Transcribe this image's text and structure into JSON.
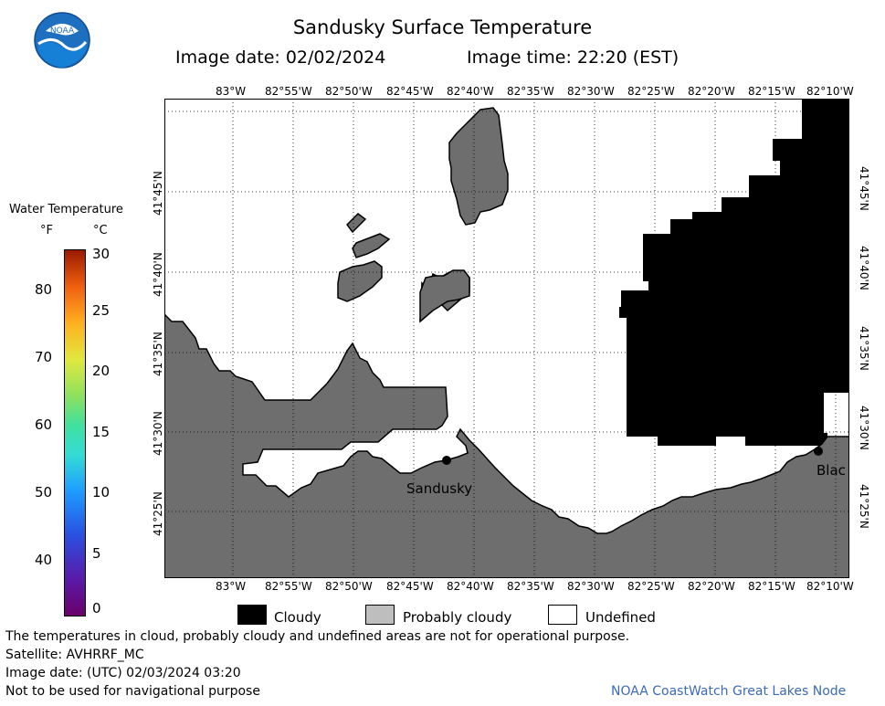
{
  "title": "Sandusky Surface Temperature",
  "image_date_label": "Image date: 02/02/2024",
  "image_time_label": "Image time: 22:20 (EST)",
  "colors": {
    "land": "#6e6e6e",
    "cloud": "#000000",
    "probably_cloud": "#bebebe",
    "water_undefined": "#ffffff"
  },
  "longitude_labels": [
    "83°W",
    "82°55'W",
    "82°50'W",
    "82°45'W",
    "82°40'W",
    "82°35'W",
    "82°30'W",
    "82°25'W",
    "82°20'W",
    "82°15'W",
    "82°10'W"
  ],
  "latitude_labels": [
    "41°45'N",
    "41°40'N",
    "41°35'N",
    "41°30'N",
    "41°25'N"
  ],
  "colorbar": {
    "title": "Water Temperature",
    "unit_f": "°F",
    "unit_c": "°C",
    "f_labels": [
      "80",
      "70",
      "60",
      "50",
      "40"
    ],
    "c_labels": [
      "30",
      "25",
      "20",
      "15",
      "10",
      "5",
      "0"
    ]
  },
  "places": [
    {
      "name": "Sandusky"
    },
    {
      "name": "Blac"
    }
  ],
  "key": {
    "cloudy": "Cloudy",
    "probably_cloudy": "Probably cloudy",
    "undefined": "Undefined"
  },
  "footer": {
    "line1": "The temperatures in cloud, probably cloudy and undefined areas are not for operational purpose.",
    "line2": "Satellite: AVHRRF_MC",
    "line3": "Image date: (UTC) 02/03/2024  03:20",
    "line4": "Not to be used for navigational purpose",
    "credit": "NOAA CoastWatch Great Lakes Node"
  },
  "logo": {
    "text": "NOAA"
  }
}
